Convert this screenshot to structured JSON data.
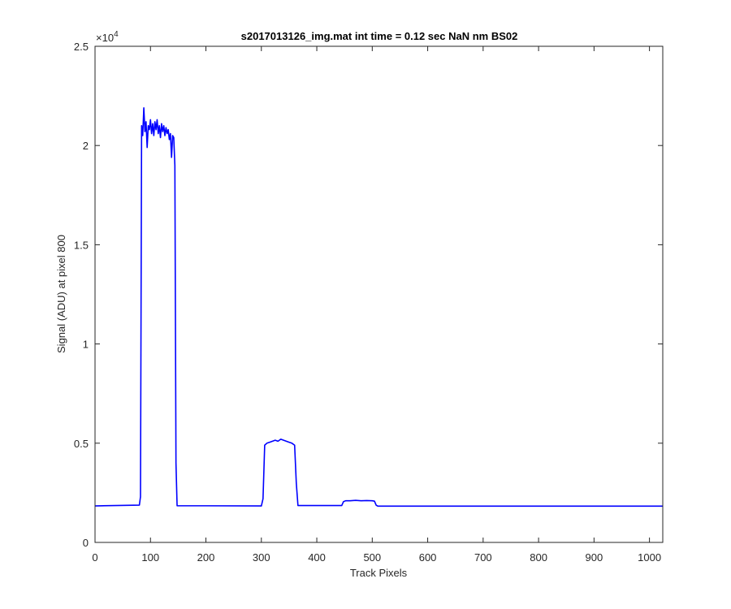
{
  "chart_data": {
    "type": "line",
    "title": "s2017013126_img.mat int time = 0.12 sec  NaN nm BS02",
    "xlabel": "Track Pixels",
    "ylabel": "Signal (ADU) at pixel 800",
    "xlim": [
      0,
      1024
    ],
    "ylim": [
      0,
      25000
    ],
    "x_ticks": [
      0,
      100,
      200,
      300,
      400,
      500,
      600,
      700,
      800,
      900,
      1000
    ],
    "x_tick_labels": [
      "0",
      "100",
      "200",
      "300",
      "400",
      "500",
      "600",
      "700",
      "800",
      "900",
      "1000"
    ],
    "y_ticks": [
      0,
      5000,
      10000,
      15000,
      20000,
      25000
    ],
    "y_tick_labels": [
      "0",
      "0.5",
      "1",
      "1.5",
      "2",
      "2.5"
    ],
    "y_exponent_label": "×10",
    "y_exponent_power": "4",
    "grid": false,
    "series_color": "#0000ff",
    "series": [
      {
        "values": [
          [
            0,
            1840
          ],
          [
            80,
            1880
          ],
          [
            82,
            2300
          ],
          [
            84,
            21000
          ],
          [
            86,
            20500
          ],
          [
            88,
            21900
          ],
          [
            90,
            20700
          ],
          [
            92,
            21200
          ],
          [
            94,
            19900
          ],
          [
            96,
            21000
          ],
          [
            98,
            20800
          ],
          [
            100,
            21300
          ],
          [
            102,
            20600
          ],
          [
            104,
            21100
          ],
          [
            106,
            20500
          ],
          [
            108,
            21200
          ],
          [
            110,
            20800
          ],
          [
            112,
            21300
          ],
          [
            114,
            20600
          ],
          [
            116,
            21000
          ],
          [
            118,
            20400
          ],
          [
            120,
            21100
          ],
          [
            122,
            20700
          ],
          [
            124,
            21000
          ],
          [
            126,
            20500
          ],
          [
            128,
            20900
          ],
          [
            130,
            20600
          ],
          [
            132,
            20800
          ],
          [
            134,
            20300
          ],
          [
            136,
            20600
          ],
          [
            138,
            19400
          ],
          [
            140,
            20500
          ],
          [
            142,
            20400
          ],
          [
            144,
            19000
          ],
          [
            146,
            4000
          ],
          [
            148,
            1850
          ],
          [
            300,
            1840
          ],
          [
            303,
            2200
          ],
          [
            306,
            4900
          ],
          [
            310,
            5000
          ],
          [
            315,
            5050
          ],
          [
            320,
            5100
          ],
          [
            325,
            5150
          ],
          [
            330,
            5100
          ],
          [
            335,
            5200
          ],
          [
            340,
            5150
          ],
          [
            345,
            5100
          ],
          [
            350,
            5050
          ],
          [
            355,
            5000
          ],
          [
            360,
            4900
          ],
          [
            363,
            3000
          ],
          [
            366,
            1860
          ],
          [
            445,
            1860
          ],
          [
            448,
            2050
          ],
          [
            452,
            2100
          ],
          [
            460,
            2100
          ],
          [
            470,
            2120
          ],
          [
            480,
            2100
          ],
          [
            490,
            2110
          ],
          [
            500,
            2100
          ],
          [
            504,
            2080
          ],
          [
            507,
            1880
          ],
          [
            510,
            1830
          ],
          [
            600,
            1830
          ],
          [
            700,
            1830
          ],
          [
            800,
            1830
          ],
          [
            900,
            1830
          ],
          [
            1024,
            1830
          ]
        ]
      }
    ]
  }
}
